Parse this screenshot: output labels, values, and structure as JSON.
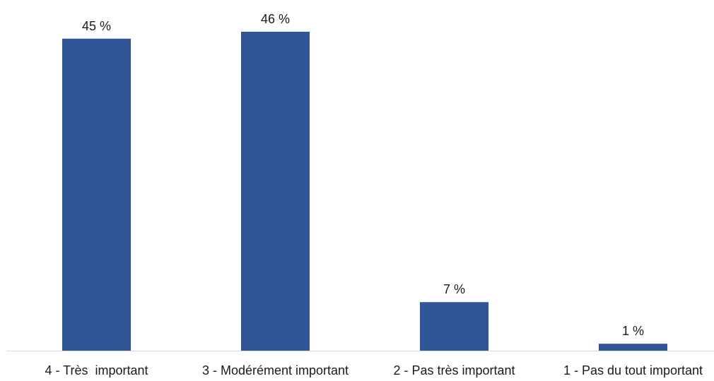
{
  "chart_data": {
    "type": "bar",
    "categories": [
      "4 - Très  important",
      "3 - Modérément important",
      "2 - Pas très important",
      "1 - Pas du tout important"
    ],
    "values": [
      45,
      46,
      7,
      1
    ],
    "data_labels": [
      "45 %",
      "46 %",
      "7 %",
      "1 %"
    ],
    "title": "",
    "xlabel": "",
    "ylabel": "",
    "ylim": [
      0,
      46
    ],
    "grid": false,
    "legend": "none",
    "colors": {
      "bar": "#2F5597",
      "axis": "#d9d9d9",
      "text": "#1a1a1a"
    }
  }
}
